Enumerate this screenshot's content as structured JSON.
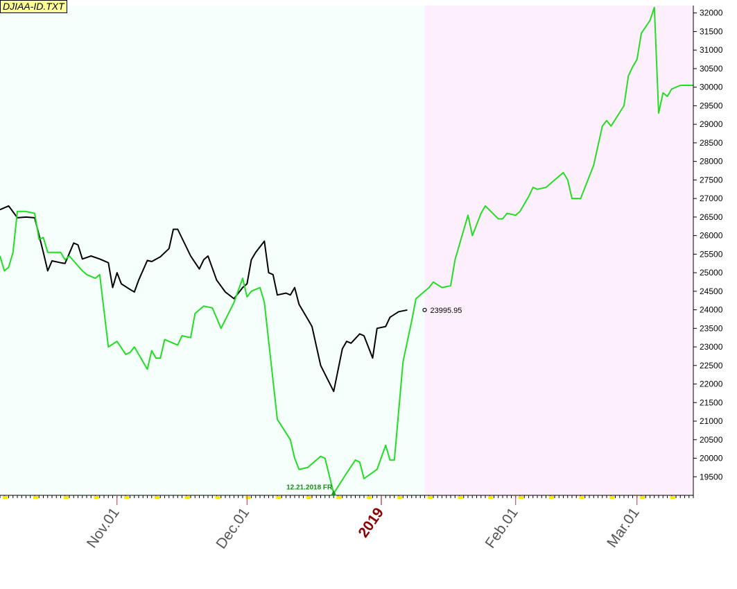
{
  "title": "DJIAA-ID.TXT",
  "chart_data": {
    "type": "line",
    "ylim": [
      19000,
      32200
    ],
    "xlim": [
      "2018-10-05",
      "2019-03-14"
    ],
    "projection_start": "2019-01-11",
    "y_ticks": [
      19500,
      20000,
      20500,
      21000,
      21500,
      22000,
      22500,
      23000,
      23500,
      24000,
      24500,
      25000,
      25500,
      26000,
      26500,
      27000,
      27500,
      28000,
      28500,
      29000,
      29500,
      30000,
      30500,
      31000,
      31500,
      32000
    ],
    "x_ticks": [
      {
        "date": "2018-11-01",
        "label": "Nov.01",
        "year": false
      },
      {
        "date": "2018-12-01",
        "label": "Dec.01",
        "year": false
      },
      {
        "date": "2019-01-01",
        "label": "2019",
        "year": true
      },
      {
        "date": "2019-02-01",
        "label": "Feb.01",
        "year": false
      },
      {
        "date": "2019-03-01",
        "label": "Mar.01",
        "year": false
      }
    ],
    "last_price_label": "23995.95",
    "last_price": {
      "x": "2019-01-11",
      "y": 23996
    },
    "marker_label": "12.21.2018 FR",
    "marker": {
      "x": "2018-12-21",
      "y": 19050
    },
    "series": [
      {
        "color": "#000000",
        "points": [
          [
            "2018-10-05",
            26700
          ],
          [
            "2018-10-07",
            26800
          ],
          [
            "2018-10-09",
            26480
          ],
          [
            "2018-10-11",
            26500
          ],
          [
            "2018-10-13",
            26480
          ],
          [
            "2018-10-15",
            25550
          ],
          [
            "2018-10-16",
            25050
          ],
          [
            "2018-10-17",
            25320
          ],
          [
            "2018-10-19",
            25270
          ],
          [
            "2018-10-20",
            25250
          ],
          [
            "2018-10-22",
            25800
          ],
          [
            "2018-10-23",
            25750
          ],
          [
            "2018-10-24",
            25370
          ],
          [
            "2018-10-26",
            25450
          ],
          [
            "2018-10-28",
            25370
          ],
          [
            "2018-10-30",
            25270
          ],
          [
            "2018-10-31",
            24600
          ],
          [
            "2018-11-01",
            25000
          ],
          [
            "2018-11-02",
            24700
          ],
          [
            "2018-11-04",
            24550
          ],
          [
            "2018-11-05",
            24480
          ],
          [
            "2018-11-06",
            24800
          ],
          [
            "2018-11-08",
            25330
          ],
          [
            "2018-11-09",
            25300
          ],
          [
            "2018-11-11",
            25430
          ],
          [
            "2018-11-13",
            25650
          ],
          [
            "2018-11-14",
            26170
          ],
          [
            "2018-11-15",
            26170
          ],
          [
            "2018-11-18",
            25450
          ],
          [
            "2018-11-20",
            25100
          ],
          [
            "2018-11-21",
            25350
          ],
          [
            "2018-11-22",
            25450
          ],
          [
            "2018-11-24",
            24800
          ],
          [
            "2018-11-26",
            24480
          ],
          [
            "2018-11-28",
            24300
          ],
          [
            "2018-11-30",
            24600
          ],
          [
            "2018-12-01",
            24700
          ],
          [
            "2018-12-02",
            25350
          ],
          [
            "2018-12-03",
            25550
          ],
          [
            "2018-12-05",
            25850
          ],
          [
            "2018-12-06",
            25000
          ],
          [
            "2018-12-07",
            24950
          ],
          [
            "2018-12-08",
            24400
          ],
          [
            "2018-12-10",
            24450
          ],
          [
            "2018-12-11",
            24400
          ],
          [
            "2018-12-12",
            24600
          ],
          [
            "2018-12-13",
            24150
          ],
          [
            "2018-12-15",
            23750
          ],
          [
            "2018-12-16",
            23550
          ],
          [
            "2018-12-18",
            22500
          ],
          [
            "2018-12-21",
            21800
          ],
          [
            "2018-12-23",
            22950
          ],
          [
            "2018-12-24",
            23150
          ],
          [
            "2018-12-25",
            23100
          ],
          [
            "2018-12-27",
            23350
          ],
          [
            "2018-12-28",
            23300
          ],
          [
            "2018-12-30",
            22700
          ],
          [
            "2018-12-31",
            23500
          ],
          [
            "2019-01-02",
            23550
          ],
          [
            "2019-01-03",
            23800
          ],
          [
            "2019-01-05",
            23950
          ],
          [
            "2019-01-07",
            23996
          ]
        ]
      },
      {
        "color": "#22dd22",
        "points": [
          [
            "2018-10-05",
            25450
          ],
          [
            "2018-10-06",
            25050
          ],
          [
            "2018-10-07",
            25150
          ],
          [
            "2018-10-08",
            25550
          ],
          [
            "2018-10-09",
            26650
          ],
          [
            "2018-10-11",
            26650
          ],
          [
            "2018-10-13",
            26600
          ],
          [
            "2018-10-14",
            25900
          ],
          [
            "2018-10-15",
            25950
          ],
          [
            "2018-10-16",
            25550
          ],
          [
            "2018-10-19",
            25550
          ],
          [
            "2018-10-20",
            25350
          ],
          [
            "2018-10-21",
            25450
          ],
          [
            "2018-10-24",
            25050
          ],
          [
            "2018-10-25",
            24950
          ],
          [
            "2018-10-27",
            24850
          ],
          [
            "2018-10-28",
            24950
          ],
          [
            "2018-10-30",
            23000
          ],
          [
            "2018-11-01",
            23150
          ],
          [
            "2018-11-03",
            22800
          ],
          [
            "2018-11-04",
            22850
          ],
          [
            "2018-11-05",
            23000
          ],
          [
            "2018-11-08",
            22400
          ],
          [
            "2018-11-09",
            22900
          ],
          [
            "2018-11-10",
            22700
          ],
          [
            "2018-11-11",
            22700
          ],
          [
            "2018-11-12",
            23200
          ],
          [
            "2018-11-14",
            23100
          ],
          [
            "2018-11-15",
            23050
          ],
          [
            "2018-11-16",
            23300
          ],
          [
            "2018-11-18",
            23250
          ],
          [
            "2018-11-19",
            23900
          ],
          [
            "2018-11-21",
            24100
          ],
          [
            "2018-11-23",
            24050
          ],
          [
            "2018-11-25",
            23500
          ],
          [
            "2018-11-28",
            24200
          ],
          [
            "2018-11-30",
            24850
          ],
          [
            "2018-12-01",
            24350
          ],
          [
            "2018-12-02",
            24500
          ],
          [
            "2018-12-04",
            24600
          ],
          [
            "2018-12-05",
            24200
          ],
          [
            "2018-12-08",
            21050
          ],
          [
            "2018-12-11",
            20500
          ],
          [
            "2018-12-12",
            20000
          ],
          [
            "2018-12-13",
            19700
          ],
          [
            "2018-12-15",
            19750
          ],
          [
            "2018-12-18",
            20050
          ],
          [
            "2018-12-19",
            20000
          ],
          [
            "2018-12-21",
            19050
          ],
          [
            "2018-12-24",
            19600
          ],
          [
            "2018-12-26",
            19950
          ],
          [
            "2018-12-27",
            19900
          ],
          [
            "2018-12-28",
            19450
          ],
          [
            "2018-12-31",
            19700
          ],
          [
            "2019-01-02",
            20350
          ],
          [
            "2019-01-03",
            19950
          ],
          [
            "2019-01-04",
            19950
          ],
          [
            "2019-01-06",
            22600
          ],
          [
            "2019-01-08",
            23700
          ],
          [
            "2019-01-09",
            24300
          ],
          [
            "2019-01-12",
            24600
          ],
          [
            "2019-01-13",
            24750
          ],
          [
            "2019-01-15",
            24600
          ],
          [
            "2019-01-17",
            24650
          ],
          [
            "2019-01-18",
            25350
          ],
          [
            "2019-01-21",
            26550
          ],
          [
            "2019-01-22",
            26000
          ],
          [
            "2019-01-24",
            26600
          ],
          [
            "2019-01-25",
            26800
          ],
          [
            "2019-01-28",
            26450
          ],
          [
            "2019-01-29",
            26450
          ],
          [
            "2019-01-30",
            26600
          ],
          [
            "2019-02-01",
            26550
          ],
          [
            "2019-02-02",
            26650
          ],
          [
            "2019-02-04",
            27050
          ],
          [
            "2019-02-05",
            27300
          ],
          [
            "2019-02-06",
            27250
          ],
          [
            "2019-02-08",
            27300
          ],
          [
            "2019-02-10",
            27500
          ],
          [
            "2019-02-12",
            27700
          ],
          [
            "2019-02-13",
            27500
          ],
          [
            "2019-02-14",
            27000
          ],
          [
            "2019-02-16",
            27000
          ],
          [
            "2019-02-19",
            27900
          ],
          [
            "2019-02-21",
            28950
          ],
          [
            "2019-02-22",
            29100
          ],
          [
            "2019-02-23",
            28950
          ],
          [
            "2019-02-26",
            29500
          ],
          [
            "2019-02-27",
            30300
          ],
          [
            "2019-02-28",
            30550
          ],
          [
            "2019-03-01",
            30750
          ],
          [
            "2019-03-02",
            31450
          ],
          [
            "2019-03-04",
            31800
          ],
          [
            "2019-03-05",
            32150
          ],
          [
            "2019-03-06",
            29300
          ],
          [
            "2019-03-07",
            29850
          ],
          [
            "2019-03-08",
            29750
          ],
          [
            "2019-03-09",
            29950
          ],
          [
            "2019-03-11",
            30050
          ],
          [
            "2019-03-14",
            30050
          ]
        ]
      }
    ]
  }
}
